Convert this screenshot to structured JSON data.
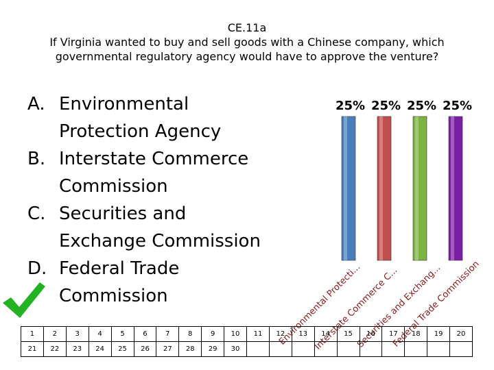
{
  "question": {
    "code": "CE.11a",
    "line1": "If Virginia wanted to buy and sell goods with a Chinese company, which",
    "line2": "governmental regulatory agency would have to approve the venture?"
  },
  "answers": [
    {
      "letter": "A.",
      "line1": "Environmental",
      "line2": "Protection Agency"
    },
    {
      "letter": "B.",
      "line1": "Interstate Commerce",
      "line2": "Commission"
    },
    {
      "letter": "C.",
      "line1": "Securities and",
      "line2": "Exchange Commission"
    },
    {
      "letter": "D.",
      "line1": "Federal Trade",
      "line2": "Commission"
    }
  ],
  "correct_icon": "checkmark-icon",
  "chart_data": {
    "type": "bar",
    "categories": [
      "Environmental Protecti...",
      "Interstate Commerce C...",
      "Securities and Exchang...",
      "Federal Trade Commission"
    ],
    "values": [
      25,
      25,
      25,
      25
    ],
    "value_labels": [
      "25%",
      "25%",
      "25%",
      "25%"
    ],
    "ylim": [
      0,
      25
    ],
    "colors": [
      "#4a7ebb",
      "#c0504d",
      "#7cb342",
      "#7b1fa2"
    ],
    "grid": false,
    "legend": "none"
  },
  "response_grid": {
    "row1": [
      "1",
      "2",
      "3",
      "4",
      "5",
      "6",
      "7",
      "8",
      "9",
      "10",
      "11",
      "12",
      "13",
      "14",
      "15",
      "16",
      "17",
      "18",
      "19",
      "20"
    ],
    "row2": [
      "21",
      "22",
      "23",
      "24",
      "25",
      "26",
      "27",
      "28",
      "29",
      "30",
      "",
      "",
      "",
      "",
      "",
      "",
      "",
      "",
      "",
      ""
    ]
  }
}
